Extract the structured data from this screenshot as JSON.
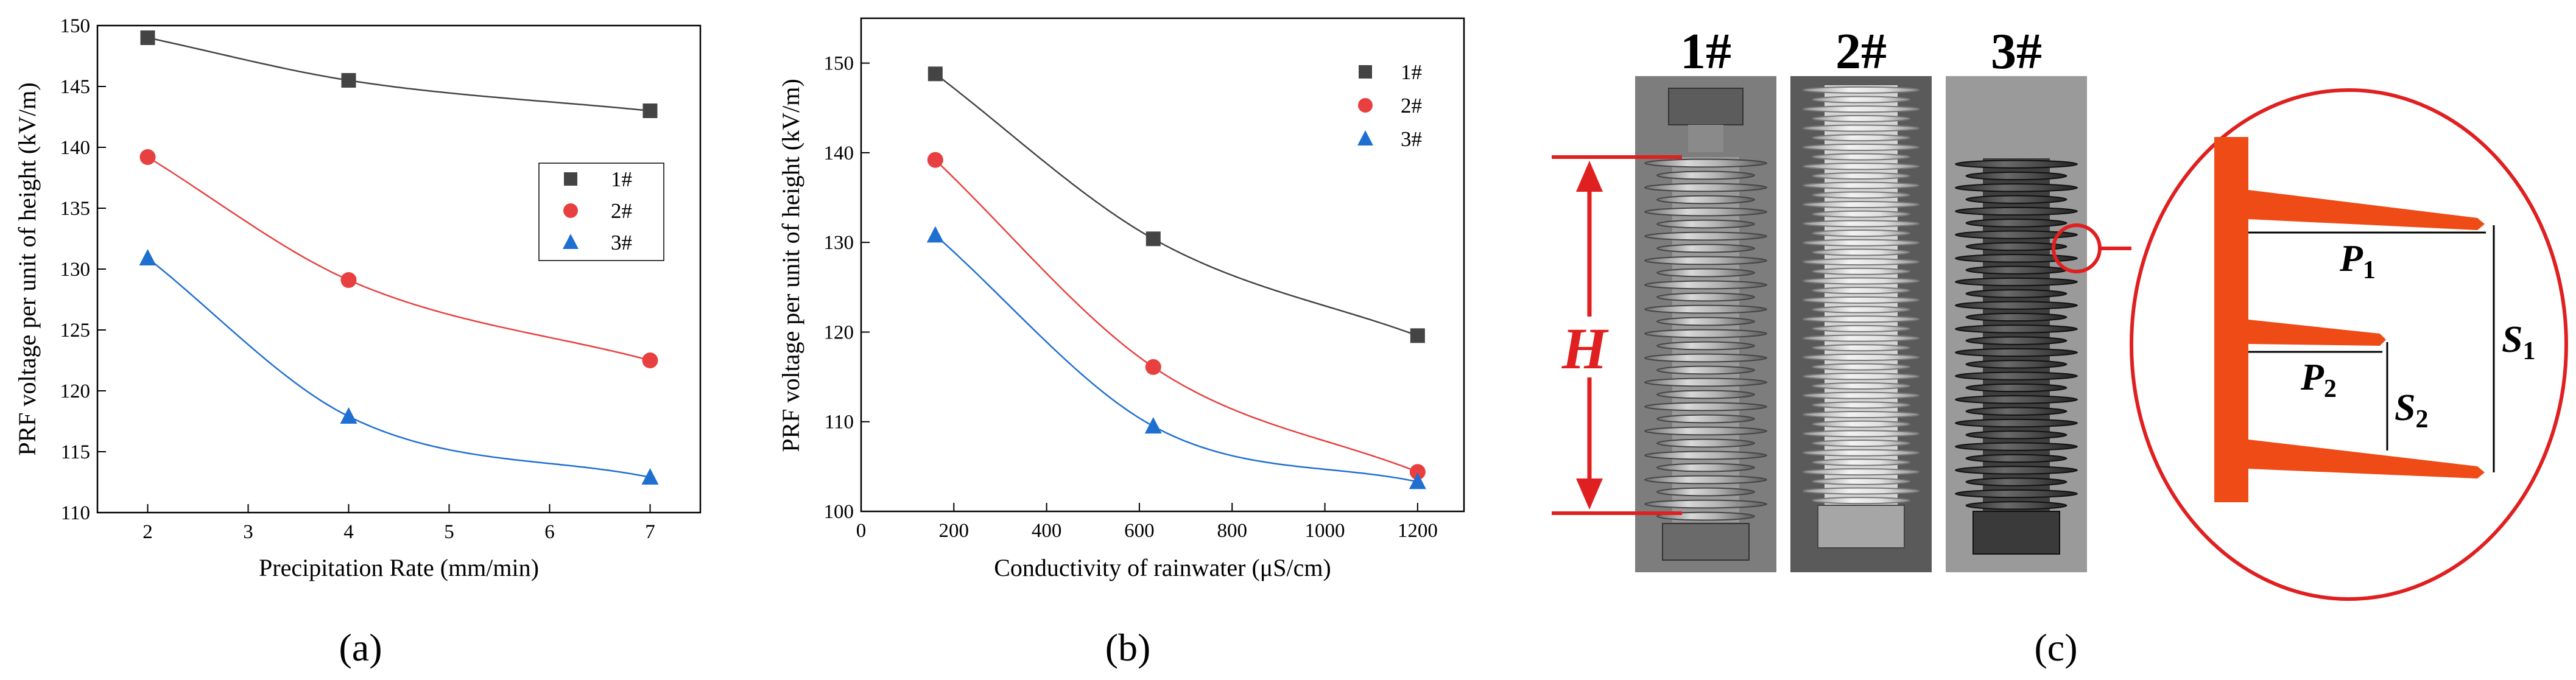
{
  "figure": {
    "panel_labels": [
      "(a)",
      "(b)",
      "(c)"
    ]
  },
  "chart_data": [
    {
      "type": "line",
      "panel": "(a)",
      "xlabel": "Precipitation Rate (mm/min)",
      "ylabel": "PRF voltage per unit of height (kV/m)",
      "xlim": [
        1.5,
        7.5
      ],
      "ylim": [
        110,
        150
      ],
      "xticks": [
        2,
        3,
        4,
        5,
        6,
        7
      ],
      "yticks": [
        110,
        115,
        120,
        125,
        130,
        135,
        140,
        145,
        150
      ],
      "x": [
        2,
        4,
        7
      ],
      "series": [
        {
          "name": "1#",
          "marker": "square",
          "color": "#444444",
          "values": [
            149,
            145.5,
            143
          ]
        },
        {
          "name": "2#",
          "marker": "circle",
          "color": "#e84040",
          "values": [
            139.2,
            129.1,
            122.5
          ]
        },
        {
          "name": "3#",
          "marker": "triangle",
          "color": "#1f6fd1",
          "values": [
            130.9,
            117.9,
            112.9
          ]
        }
      ],
      "grid": false,
      "legend": "center-right"
    },
    {
      "type": "line",
      "panel": "(b)",
      "xlabel": "Conductivity of rainwater (μS/cm)",
      "ylabel": "PRF voltage per unit of height (kV/m)",
      "xlim": [
        0,
        1300
      ],
      "ylim": [
        100,
        155
      ],
      "xticks": [
        0,
        200,
        400,
        600,
        800,
        1000,
        1200
      ],
      "yticks": [
        100,
        110,
        120,
        130,
        140,
        150
      ],
      "x": [
        160,
        630,
        1200
      ],
      "series": [
        {
          "name": "1#",
          "marker": "square",
          "color": "#444444",
          "values": [
            148.8,
            130.4,
            119.6
          ]
        },
        {
          "name": "2#",
          "marker": "circle",
          "color": "#e84040",
          "values": [
            139.2,
            116.1,
            104.4
          ]
        },
        {
          "name": "3#",
          "marker": "triangle",
          "color": "#1f6fd1",
          "values": [
            130.8,
            109.5,
            103.3
          ]
        }
      ],
      "grid": false,
      "legend": "top-right"
    }
  ],
  "photos": {
    "labels": [
      "1#",
      "2#",
      "3#"
    ],
    "height_symbol": "H",
    "detail": {
      "p1": "P",
      "p1_sub": "1",
      "p2": "P",
      "p2_sub": "2",
      "s1": "S",
      "s1_sub": "1",
      "s2": "S",
      "s2_sub": "2"
    }
  },
  "colors": {
    "red": "#e02020",
    "shed_orange": "#ee4b17",
    "black_series": "#444444",
    "red_series": "#e84040",
    "blue_series": "#1f6fd1"
  }
}
